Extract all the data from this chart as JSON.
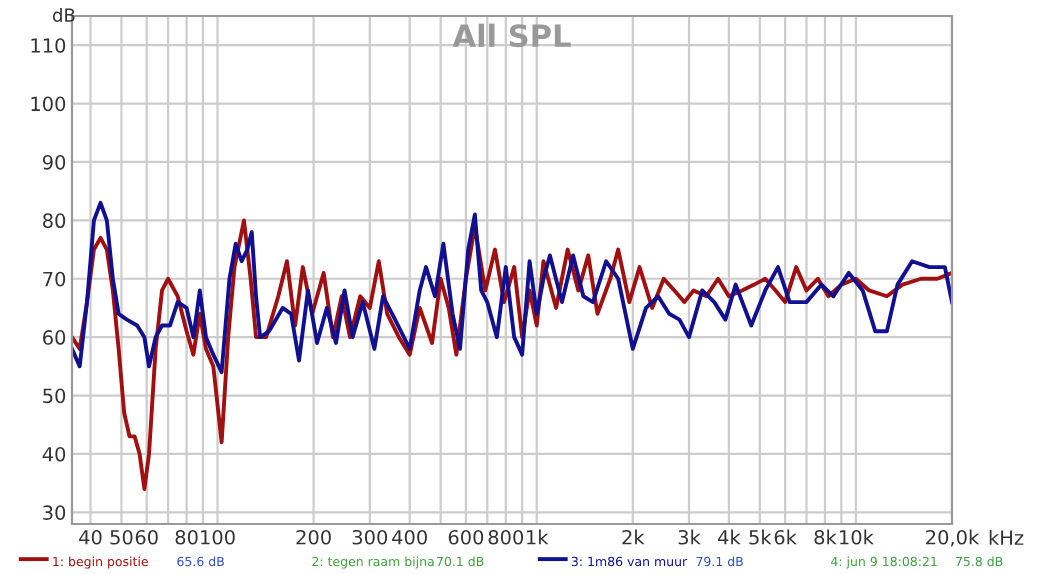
{
  "chart_data": {
    "type": "line",
    "title": "All SPL",
    "ylabel": "dB",
    "xlim": [
      35,
      20000
    ],
    "ylim": [
      28,
      115
    ],
    "log": "x",
    "grid": true,
    "legend": "bottom",
    "line_style": "solid",
    "xticks": [
      40,
      50,
      60,
      {
        "value": 70,
        "label": null
      },
      80,
      {
        "value": 90,
        "label": null
      },
      100,
      200,
      300,
      400,
      {
        "value": 500,
        "label": null
      },
      600,
      {
        "value": 700,
        "label": null
      },
      800,
      {
        "value": 900,
        "label": null
      },
      {
        "value": 1000,
        "label": "1k"
      },
      {
        "value": 2000,
        "label": "2k"
      },
      {
        "value": 3000,
        "label": "3k"
      },
      {
        "value": 4000,
        "label": "4k"
      },
      {
        "value": 5000,
        "label": "5k"
      },
      {
        "value": 6000,
        "label": "6k"
      },
      {
        "value": 7000,
        "label": null
      },
      {
        "value": 8000,
        "label": "8k"
      },
      {
        "value": 9000,
        "label": null
      },
      {
        "value": 10000,
        "label": "10k"
      },
      {
        "value": 20000,
        "label": "20,0k"
      }
    ],
    "xlabel": "kHz",
    "yticks": [
      30,
      40,
      50,
      60,
      70,
      80,
      90,
      100,
      110
    ],
    "series": [
      {
        "name": "1: begin positie",
        "color": "#a01010",
        "x": [
          35,
          37,
          39,
          41,
          43,
          45,
          47,
          49,
          51,
          53,
          55,
          57,
          59,
          61,
          64,
          67,
          70,
          75,
          80,
          84,
          88,
          92,
          97,
          103,
          108,
          113,
          121,
          127,
          132,
          142,
          155,
          165,
          175,
          185,
          198,
          215,
          230,
          245,
          260,
          280,
          300,
          320,
          340,
          370,
          400,
          430,
          470,
          500,
          530,
          560,
          600,
          640,
          690,
          740,
          790,
          850,
          900,
          950,
          1000,
          1050,
          1150,
          1250,
          1350,
          1450,
          1550,
          1700,
          1800,
          1950,
          2100,
          2300,
          2500,
          2700,
          2900,
          3100,
          3400,
          3700,
          4000,
          4400,
          4800,
          5200,
          5600,
          6000,
          6500,
          7000,
          7600,
          8200,
          9000,
          10000,
          11000,
          12500,
          14000,
          16000,
          18000,
          20000
        ],
        "values": [
          60,
          58,
          66,
          75,
          77,
          75,
          68,
          58,
          47,
          43,
          43,
          40,
          34,
          40,
          58,
          68,
          70,
          67,
          61,
          57,
          64,
          58,
          55,
          42,
          60,
          72,
          80,
          70,
          60,
          60,
          67,
          73,
          62,
          72,
          64,
          71,
          60,
          67,
          60,
          67,
          65,
          73,
          64,
          60,
          57,
          65,
          59,
          70,
          65,
          57,
          70,
          79,
          68,
          75,
          66,
          72,
          60,
          68,
          62,
          73,
          65,
          75,
          68,
          74,
          64,
          70,
          75,
          66,
          72,
          65,
          70,
          68,
          66,
          68,
          67,
          70,
          67,
          68,
          69,
          70,
          68,
          66,
          72,
          68,
          70,
          67,
          69,
          70,
          68,
          67,
          69,
          70,
          70,
          71
        ]
      },
      {
        "name": "3: 1m86 van muur",
        "color": "#101090",
        "x": [
          35,
          37,
          39,
          41,
          43,
          45,
          47,
          49,
          52,
          56,
          59,
          61,
          64,
          67,
          71,
          75,
          80,
          84,
          88,
          92,
          97,
          103,
          109,
          114,
          119,
          124,
          128,
          132,
          136,
          145,
          160,
          170,
          180,
          192,
          205,
          220,
          235,
          250,
          265,
          285,
          310,
          330,
          360,
          400,
          430,
          450,
          480,
          510,
          545,
          575,
          610,
          640,
          670,
          700,
          750,
          800,
          850,
          900,
          950,
          1000,
          1050,
          1100,
          1200,
          1300,
          1400,
          1500,
          1650,
          1800,
          2000,
          2200,
          2400,
          2600,
          2800,
          3000,
          3300,
          3600,
          3900,
          4200,
          4700,
          5200,
          5700,
          6200,
          7000,
          7800,
          8500,
          9500,
          10500,
          11500,
          12500,
          13500,
          15000,
          17000,
          19000,
          20000
        ],
        "values": [
          58,
          55,
          66,
          80,
          83,
          80,
          70,
          64,
          63,
          62,
          60,
          55,
          60,
          62,
          62,
          66,
          65,
          60,
          68,
          60,
          57,
          54,
          70,
          76,
          73,
          75,
          78,
          67,
          60,
          61,
          65,
          64,
          56,
          68,
          59,
          65,
          59,
          68,
          60,
          66,
          58,
          67,
          63,
          58,
          68,
          72,
          67,
          76,
          64,
          58,
          75,
          81,
          68,
          66,
          60,
          72,
          60,
          57,
          73,
          64,
          70,
          74,
          66,
          74,
          67,
          66,
          73,
          70,
          58,
          65,
          67,
          64,
          63,
          60,
          68,
          66,
          63,
          69,
          62,
          68,
          72,
          66,
          66,
          69,
          67,
          71,
          68,
          61,
          61,
          69,
          73,
          72,
          72,
          66
        ]
      }
    ],
    "annotations": [
      "65.6 dB",
      "2: tegen raam bijna",
      "70.1 dB",
      "79.1 dB",
      "4: jun 9 18:08:21",
      "75.8 dB"
    ]
  }
}
